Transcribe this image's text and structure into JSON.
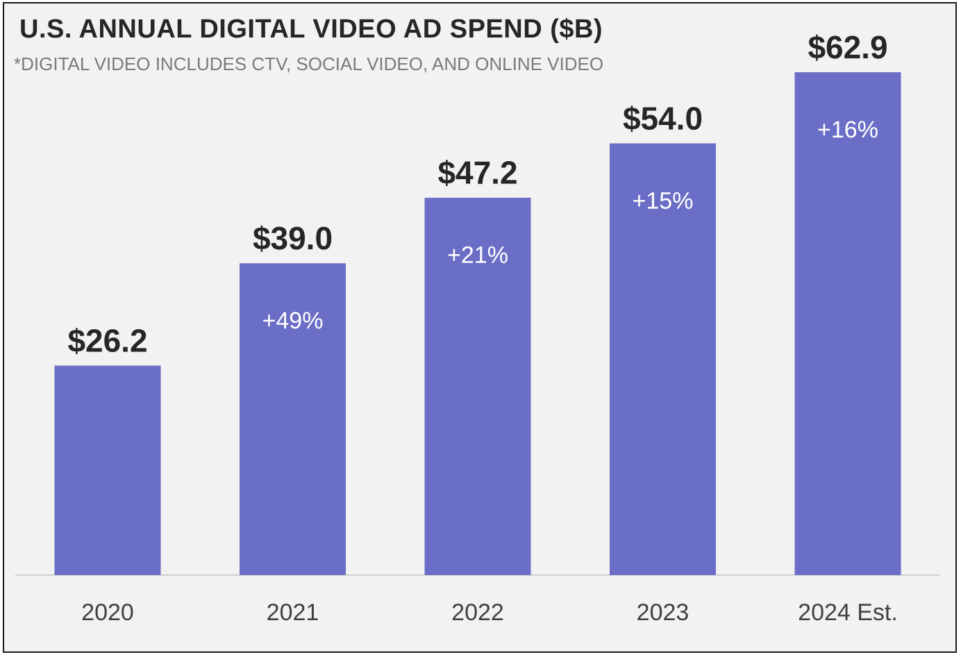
{
  "chart_data": {
    "type": "bar",
    "title": "U.S. ANNUAL DIGITAL VIDEO AD SPEND ($B)",
    "subtitle": "*DIGITAL VIDEO INCLUDES CTV, SOCIAL VIDEO, AND ONLINE VIDEO",
    "xlabel": "",
    "ylabel": "",
    "categories": [
      "2020",
      "2021",
      "2022",
      "2023",
      "2024 Est."
    ],
    "values": [
      26.2,
      39.0,
      47.2,
      54.0,
      62.9
    ],
    "value_labels": [
      "$26.2",
      "$39.0",
      "$47.2",
      "$54.0",
      "$62.9"
    ],
    "growth_labels": [
      "",
      "+49%",
      "+21%",
      "+15%",
      "+16%"
    ],
    "ylim": [
      0,
      62.9
    ],
    "grid": false,
    "legend": "none",
    "bar_color": "#6b6ec6",
    "background_color": "#f2f2f2"
  }
}
